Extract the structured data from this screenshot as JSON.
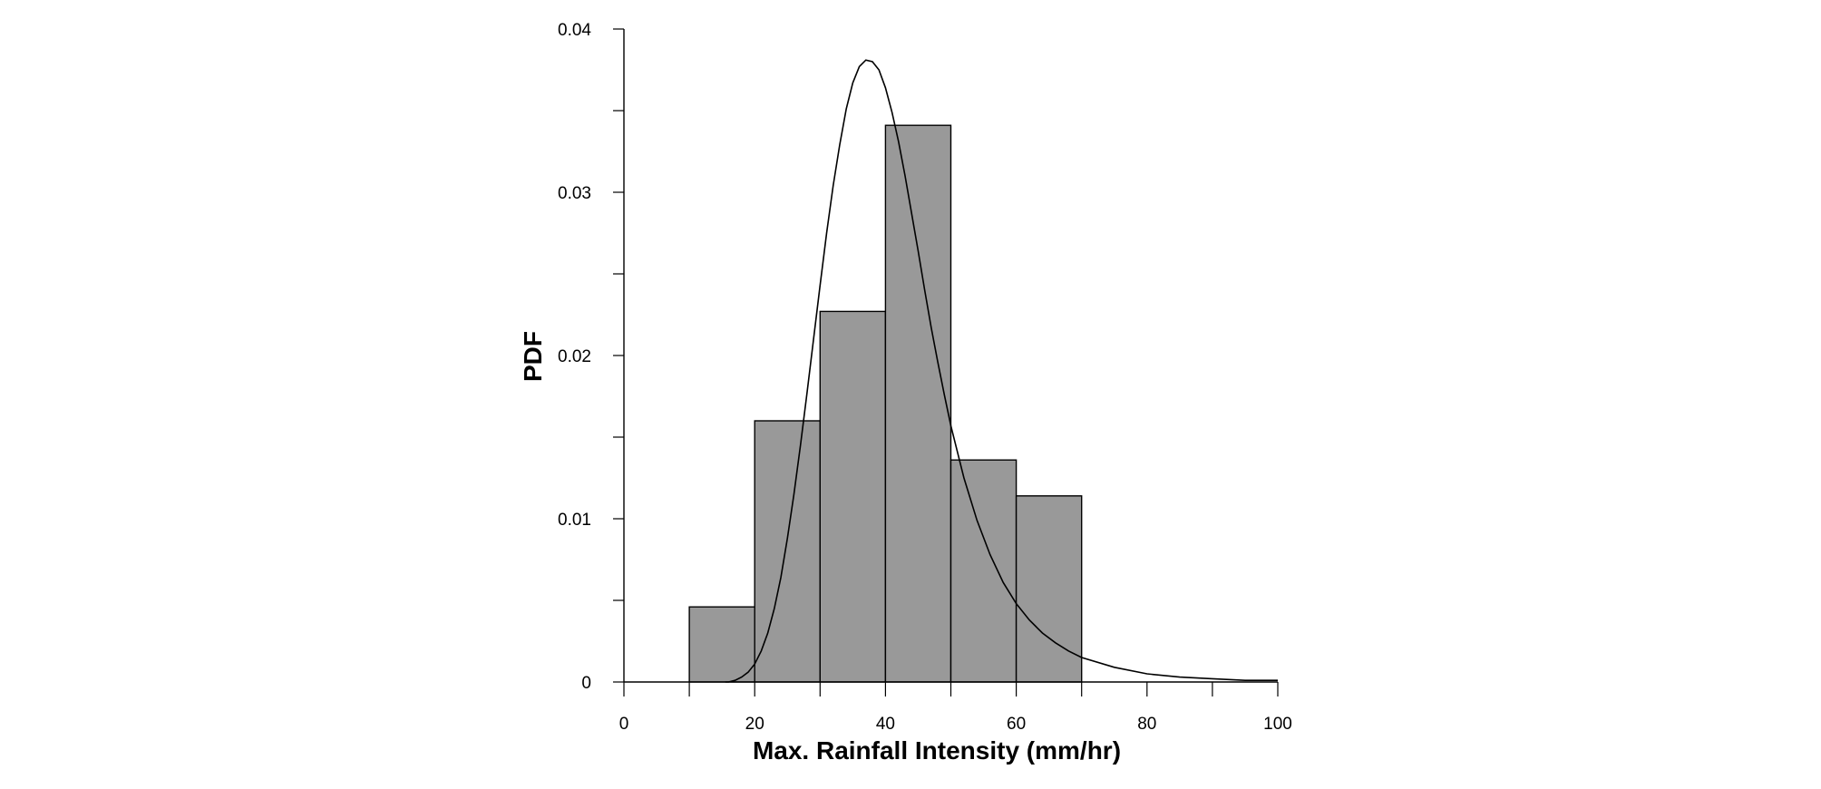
{
  "chart_data": {
    "type": "bar",
    "title": "",
    "xlabel": "Max. Rainfall Intensity (mm/hr)",
    "ylabel": "PDF",
    "xlim": [
      0,
      100
    ],
    "ylim": [
      0,
      0.04
    ],
    "x_ticks": [
      0,
      20,
      40,
      60,
      80,
      100
    ],
    "x_tick_labels": [
      "0",
      "20",
      "40",
      "60",
      "80",
      "100"
    ],
    "x_minor_ticks": [
      10,
      30,
      50,
      70,
      90
    ],
    "y_ticks": [
      0,
      0.01,
      0.02,
      0.03,
      0.04
    ],
    "y_tick_labels": [
      "0",
      "0.01",
      "0.02",
      "0.03",
      "0.04"
    ],
    "y_minor_ticks": [
      0.005,
      0.015,
      0.025,
      0.035
    ],
    "grid": false,
    "legend": "none",
    "histogram": {
      "bins": [
        {
          "x0": 10,
          "x1": 20,
          "value": 0.0046
        },
        {
          "x0": 20,
          "x1": 30,
          "value": 0.016
        },
        {
          "x0": 30,
          "x1": 40,
          "value": 0.0227
        },
        {
          "x0": 40,
          "x1": 50,
          "value": 0.0341
        },
        {
          "x0": 50,
          "x1": 60,
          "value": 0.0136
        },
        {
          "x0": 60,
          "x1": 70,
          "value": 0.0114
        }
      ],
      "fill_color": "#999999",
      "edge_color": "#000000"
    },
    "fitted_curve": {
      "type": "line",
      "color": "#000000",
      "points": [
        [
          15.5,
          0.0
        ],
        [
          16,
          0.0
        ],
        [
          17,
          0.0001
        ],
        [
          18,
          0.0003
        ],
        [
          19,
          0.0006
        ],
        [
          20,
          0.0011
        ],
        [
          21,
          0.0019
        ],
        [
          22,
          0.003
        ],
        [
          23,
          0.0045
        ],
        [
          24,
          0.0064
        ],
        [
          25,
          0.0088
        ],
        [
          26,
          0.0115
        ],
        [
          27,
          0.0145
        ],
        [
          28,
          0.0177
        ],
        [
          29,
          0.021
        ],
        [
          30,
          0.0243
        ],
        [
          31,
          0.0275
        ],
        [
          32,
          0.0304
        ],
        [
          33,
          0.0329
        ],
        [
          34,
          0.0351
        ],
        [
          35,
          0.0367
        ],
        [
          36,
          0.0377
        ],
        [
          37,
          0.0381
        ],
        [
          38,
          0.038
        ],
        [
          39,
          0.0375
        ],
        [
          40,
          0.0364
        ],
        [
          41,
          0.0349
        ],
        [
          42,
          0.0331
        ],
        [
          43,
          0.031
        ],
        [
          44,
          0.0287
        ],
        [
          45,
          0.0264
        ],
        [
          46,
          0.024
        ],
        [
          47,
          0.0217
        ],
        [
          48,
          0.0196
        ],
        [
          49,
          0.0176
        ],
        [
          50,
          0.0157
        ],
        [
          52,
          0.0125
        ],
        [
          54,
          0.0099
        ],
        [
          56,
          0.0078
        ],
        [
          58,
          0.0061
        ],
        [
          60,
          0.0048
        ],
        [
          62,
          0.0038
        ],
        [
          64,
          0.003
        ],
        [
          66,
          0.0024
        ],
        [
          68,
          0.0019
        ],
        [
          70,
          0.0015
        ],
        [
          75,
          0.0009
        ],
        [
          80,
          0.0005
        ],
        [
          85,
          0.0003
        ],
        [
          90,
          0.0002
        ],
        [
          95,
          0.0001
        ],
        [
          100,
          0.0001
        ]
      ]
    }
  }
}
